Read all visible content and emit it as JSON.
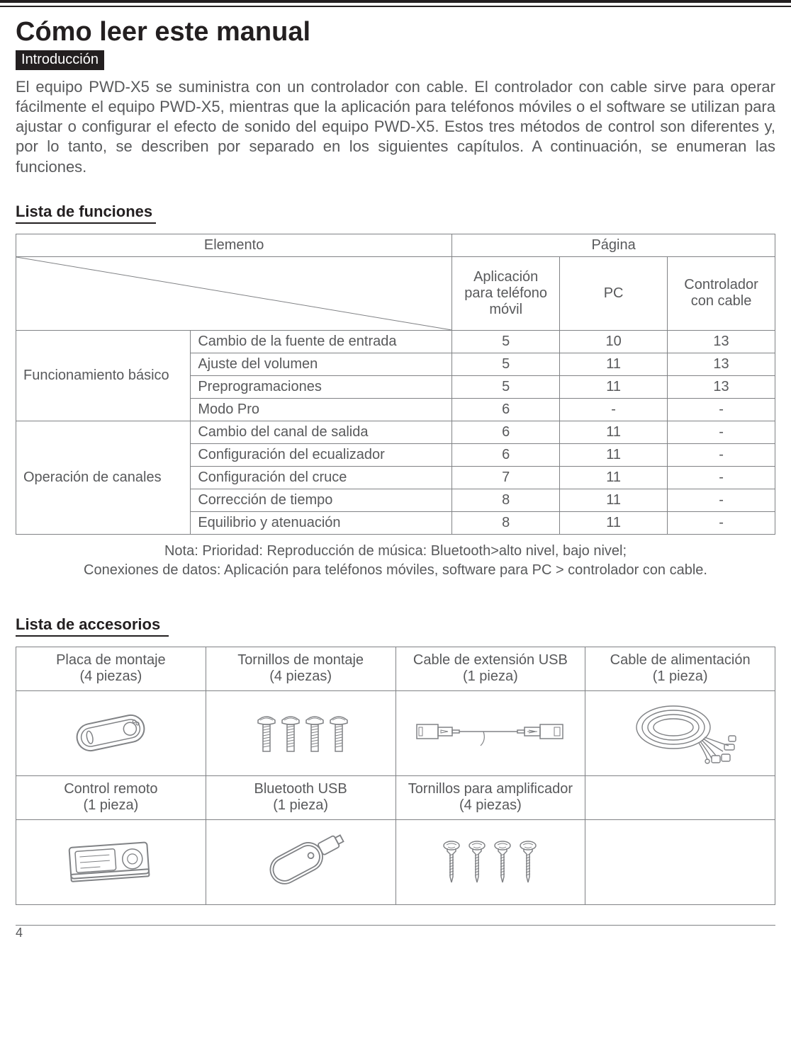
{
  "colors": {
    "text_dark": "#231f20",
    "text_body": "#58595b",
    "rule": "#231f20",
    "border": "#808285",
    "tag_bg": "#231f20",
    "tag_fg": "#ffffff",
    "icon_stroke": "#808285",
    "icon_fill": "#ffffff"
  },
  "title": "Cómo leer este manual",
  "intro_tag": "Introducción",
  "intro_text": "El equipo PWD-X5 se suministra con un controlador con cable. El controlador con cable sirve para operar fácilmente el equipo PWD-X5, mientras que la aplicación para teléfonos móviles o el software se utilizan para ajustar o configurar el efecto de sonido del equipo PWD-X5. Estos tres métodos de control son diferentes y, por lo tanto, se describen por separado en los siguientes capítulos. A continuación, se enumeran las funciones.",
  "functions": {
    "heading": "Lista de funciones",
    "col_item": "Elemento",
    "col_page": "Página",
    "subcols": {
      "app": "Aplicación para teléfono móvil",
      "pc": "PC",
      "wired": "Controlador con cable"
    },
    "groups": [
      {
        "name": "Funcionamiento básico",
        "rows": [
          {
            "item": "Cambio de la fuente de entrada",
            "app": "5",
            "pc": "10",
            "wired": "13"
          },
          {
            "item": "Ajuste del volumen",
            "app": "5",
            "pc": "11",
            "wired": "13"
          },
          {
            "item": "Preprogramaciones",
            "app": "5",
            "pc": "11",
            "wired": "13"
          },
          {
            "item": "Modo Pro",
            "app": "6",
            "pc": "-",
            "wired": "-"
          }
        ]
      },
      {
        "name": "Operación de canales",
        "rows": [
          {
            "item": "Cambio del canal de salida",
            "app": "6",
            "pc": "11",
            "wired": "-"
          },
          {
            "item": "Configuración del ecualizador",
            "app": "6",
            "pc": "11",
            "wired": "-"
          },
          {
            "item": "Configuración del cruce",
            "app": "7",
            "pc": "11",
            "wired": "-"
          },
          {
            "item": "Corrección de tiempo",
            "app": "8",
            "pc": "11",
            "wired": "-"
          },
          {
            "item": "Equilibrio y atenuación",
            "app": "8",
            "pc": "11",
            "wired": "-"
          }
        ]
      }
    ],
    "note_line1": "Nota: Prioridad: Reproducción de música: Bluetooth>alto nivel, bajo nivel;",
    "note_line2": "Conexiones de datos: Aplicación para teléfonos móviles, software para PC > controlador con cable."
  },
  "accessories": {
    "heading": "Lista de accesorios",
    "items": [
      {
        "name": "Placa de montaje",
        "qty": "(4 piezas)",
        "icon": "mount-plate"
      },
      {
        "name": "Tornillos de montaje",
        "qty": "(4 piezas)",
        "icon": "screws-machine"
      },
      {
        "name": "Cable de extensión USB",
        "qty": "(1 pieza)",
        "icon": "usb-cable"
      },
      {
        "name": "Cable de alimentación",
        "qty": "(1 pieza)",
        "icon": "wire-harness"
      },
      {
        "name": "Control remoto",
        "qty": "(1 pieza)",
        "icon": "remote"
      },
      {
        "name": "Bluetooth USB",
        "qty": "(1 pieza)",
        "icon": "bt-dongle"
      },
      {
        "name": "Tornillos para amplificador",
        "qty": "(4 piezas)",
        "icon": "screws-self"
      },
      {
        "name": "",
        "qty": "",
        "icon": ""
      }
    ]
  },
  "page_number": "4"
}
